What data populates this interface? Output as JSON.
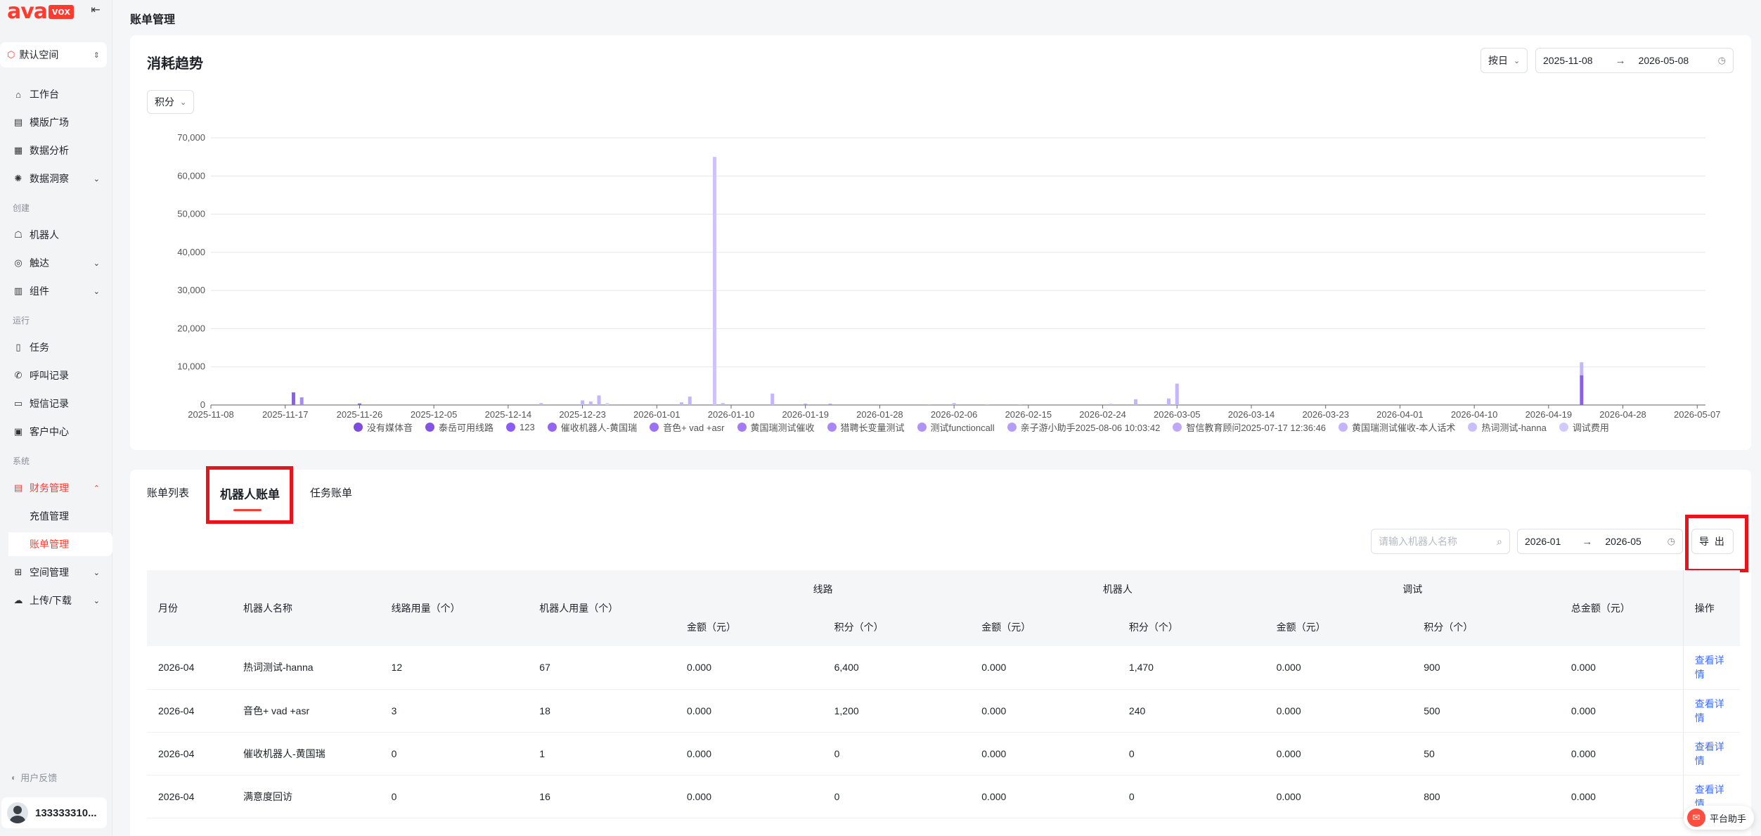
{
  "brand": {
    "logo_main": "ava",
    "logo_badge": "vox"
  },
  "sidebar": {
    "space": "默认空间",
    "items": [
      {
        "label": "工作台"
      },
      {
        "label": "模版广场"
      },
      {
        "label": "数据分析"
      },
      {
        "label": "数据洞察"
      },
      {
        "label": "机器人"
      },
      {
        "label": "触达"
      },
      {
        "label": "组件"
      },
      {
        "label": "任务"
      },
      {
        "label": "呼叫记录"
      },
      {
        "label": "短信记录"
      },
      {
        "label": "客户中心"
      },
      {
        "label": "财务管理"
      },
      {
        "label": "充值管理"
      },
      {
        "label": "账单管理"
      },
      {
        "label": "空间管理"
      },
      {
        "label": "上传/下载"
      }
    ],
    "sections": {
      "create": "创建",
      "run": "运行",
      "system": "系统"
    },
    "feedback": "用户反馈",
    "user": "133333310..."
  },
  "header": {
    "title": "账单管理"
  },
  "trend": {
    "title": "消耗趋势",
    "granularity": "按日",
    "date_start": "2025-11-08",
    "date_end": "2026-05-08",
    "metric": "积分"
  },
  "chart_data": {
    "type": "bar",
    "stacked": true,
    "y_ticks": [
      "0",
      "10,000",
      "20,000",
      "30,000",
      "40,000",
      "50,000",
      "60,000",
      "70,000"
    ],
    "ylim": [
      0,
      70000
    ],
    "x_ticks": [
      "2025-11-08",
      "2025-11-17",
      "2025-11-26",
      "2025-12-05",
      "2025-12-14",
      "2025-12-23",
      "2026-01-01",
      "2026-01-10",
      "2026-01-19",
      "2026-01-28",
      "2026-02-06",
      "2026-02-15",
      "2026-02-24",
      "2026-03-05",
      "2026-03-14",
      "2026-03-23",
      "2026-04-01",
      "2026-04-10",
      "2026-04-19",
      "2026-04-28",
      "2026-05-07"
    ],
    "x_range_days": 181,
    "bars": [
      {
        "day": 10,
        "value": 3300,
        "color": "#8b5cf6"
      },
      {
        "day": 11,
        "value": 2000,
        "color": "#a78bfa"
      },
      {
        "day": 18,
        "value": 400,
        "color": "#8b5cf6"
      },
      {
        "day": 40,
        "value": 500,
        "color": "#c4b5fd"
      },
      {
        "day": 45,
        "value": 1200,
        "color": "#c4b5fd"
      },
      {
        "day": 46,
        "value": 900,
        "color": "#c4b5fd"
      },
      {
        "day": 47,
        "value": 2500,
        "color": "#c4b5fd"
      },
      {
        "day": 48,
        "value": 500,
        "color": "#d8ccfc"
      },
      {
        "day": 57,
        "value": 700,
        "color": "#c4b5fd"
      },
      {
        "day": 58,
        "value": 2200,
        "color": "#c4b5fd"
      },
      {
        "day": 61,
        "value": 65000,
        "color": "#d1c2fb"
      },
      {
        "day": 62,
        "value": 500,
        "color": "#c4b5fd"
      },
      {
        "day": 68,
        "value": 3000,
        "color": "#c4b5fd"
      },
      {
        "day": 72,
        "value": 300,
        "color": "#a78bfa"
      },
      {
        "day": 75,
        "value": 300,
        "color": "#a78bfa"
      },
      {
        "day": 87,
        "value": 200,
        "color": "#c4b5fd"
      },
      {
        "day": 90,
        "value": 500,
        "color": "#c4b5fd"
      },
      {
        "day": 94,
        "value": 200,
        "color": "#c4b5fd"
      },
      {
        "day": 98,
        "value": 200,
        "color": "#c4b5fd"
      },
      {
        "day": 109,
        "value": 300,
        "color": "#c4b5fd"
      },
      {
        "day": 112,
        "value": 1500,
        "color": "#c4b5fd"
      },
      {
        "day": 116,
        "value": 1700,
        "color": "#c4b5fd"
      },
      {
        "day": 117,
        "value": 5600,
        "color": "#c4b5fd"
      },
      {
        "day": 166,
        "value": 7800,
        "color": "#8b5cf6"
      },
      {
        "day": 166,
        "value": 3400,
        "color": "#c4b5fd",
        "stack": true
      }
    ],
    "legend": [
      {
        "name": "没有媒体音",
        "color": "#7c4ddf"
      },
      {
        "name": "泰岳可用线路",
        "color": "#8453e6"
      },
      {
        "name": "123",
        "color": "#8b5cf6"
      },
      {
        "name": "催收机器人-黄国瑞",
        "color": "#9466f3"
      },
      {
        "name": "音色+ vad +asr",
        "color": "#9b70f5"
      },
      {
        "name": "黄国瑞测试催收",
        "color": "#a27bf7"
      },
      {
        "name": "猎聘长变量测试",
        "color": "#a986f9"
      },
      {
        "name": "测试functioncall",
        "color": "#b092fa"
      },
      {
        "name": "亲子游小助手2025-08-06 10:03:42",
        "color": "#b79dfb"
      },
      {
        "name": "智信教育顾问2025-07-17 12:36:46",
        "color": "#bea8fc"
      },
      {
        "name": "黄国瑞测试催收-本人话术",
        "color": "#c5b3fc"
      },
      {
        "name": "热词测试-hanna",
        "color": "#ccbefd"
      },
      {
        "name": "调试费用",
        "color": "#d3c9fd"
      }
    ]
  },
  "bill": {
    "tabs": [
      "账单列表",
      "机器人账单",
      "任务账单"
    ],
    "search_placeholder": "请输入机器人名称",
    "date_start": "2026-01",
    "date_end": "2026-05",
    "export_label": "导 出",
    "columns": {
      "month": "月份",
      "robot_name": "机器人名称",
      "line_usage": "线路用量（个）",
      "robot_usage": "机器人用量（个）",
      "group_line": "线路",
      "group_robot": "机器人",
      "group_debug": "调试",
      "amount": "金额（元）",
      "points": "积分（个）",
      "total": "总金额（元）",
      "op": "操作"
    },
    "rows": [
      {
        "month": "2026-04",
        "name": "热词测试-hanna",
        "line_usage": "12",
        "robot_usage": "67",
        "line_amount": "0.000",
        "line_points": "6,400",
        "robot_amount": "0.000",
        "robot_points": "1,470",
        "debug_amount": "0.000",
        "debug_points": "900",
        "total": "0.000",
        "op": "查看详情"
      },
      {
        "month": "2026-04",
        "name": "音色+ vad +asr",
        "line_usage": "3",
        "robot_usage": "18",
        "line_amount": "0.000",
        "line_points": "1,200",
        "robot_amount": "0.000",
        "robot_points": "240",
        "debug_amount": "0.000",
        "debug_points": "500",
        "total": "0.000",
        "op": "查看详情"
      },
      {
        "month": "2026-04",
        "name": "催收机器人-黄国瑞",
        "line_usage": "0",
        "robot_usage": "1",
        "line_amount": "0.000",
        "line_points": "0",
        "robot_amount": "0.000",
        "robot_points": "0",
        "debug_amount": "0.000",
        "debug_points": "50",
        "total": "0.000",
        "op": "查看详情"
      },
      {
        "month": "2026-04",
        "name": "满意度回访",
        "line_usage": "0",
        "robot_usage": "16",
        "line_amount": "0.000",
        "line_points": "0",
        "robot_amount": "0.000",
        "robot_points": "0",
        "debug_amount": "0.000",
        "debug_points": "800",
        "total": "0.000",
        "op": "查看详情"
      }
    ]
  },
  "assistant": {
    "label": "平台助手"
  }
}
